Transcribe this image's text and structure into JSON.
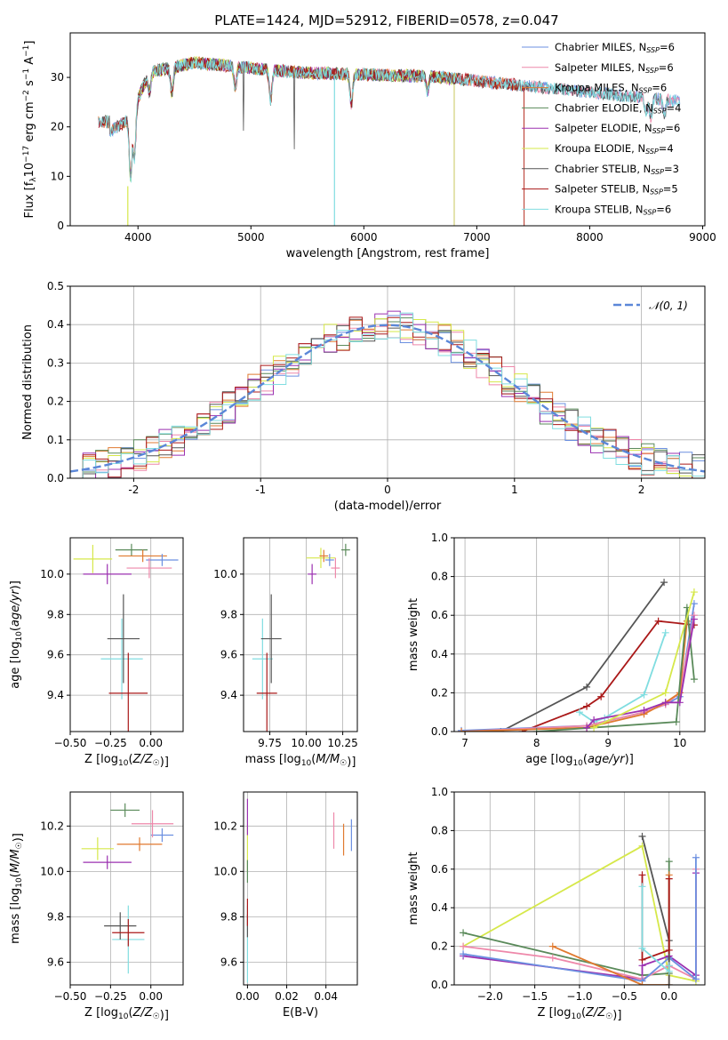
{
  "figure": {
    "title": "PLATE=1424, MJD=52912, FIBERID=0578, z=0.047"
  },
  "colors": {
    "chabrier_miles": "#6b8fe0",
    "salpeter_miles": "#ee88aa",
    "kroupa_miles": "#e07a30",
    "chabrier_elodie": "#5a8a5a",
    "salpeter_elodie": "#9b30b0",
    "kroupa_elodie": "#d6e84a",
    "chabrier_stelib": "#555555",
    "salpeter_stelib": "#aa1818",
    "kroupa_stelib": "#80dde0",
    "normal": "#5b87d8"
  },
  "legend_labels": [
    {
      "base": "Chabrier MILES, N",
      "sub": "SSP",
      "tail": "=6"
    },
    {
      "base": "Salpeter MILES, N",
      "sub": "SSP",
      "tail": "=6"
    },
    {
      "base": "Kroupa MILES, N",
      "sub": "SSP",
      "tail": "=6"
    },
    {
      "base": "Chabrier ELODIE, N",
      "sub": "SSP",
      "tail": "=4"
    },
    {
      "base": "Salpeter ELODIE, N",
      "sub": "SSP",
      "tail": "=6"
    },
    {
      "base": "Kroupa ELODIE, N",
      "sub": "SSP",
      "tail": "=4"
    },
    {
      "base": "Chabrier STELIB, N",
      "sub": "SSP",
      "tail": "=3"
    },
    {
      "base": "Salpeter STELIB, N",
      "sub": "SSP",
      "tail": "=5"
    },
    {
      "base": "Kroupa STELIB, N",
      "sub": "SSP",
      "tail": "=6"
    }
  ],
  "chart_data": [
    {
      "id": "spectrum",
      "type": "line",
      "xlabel": "wavelength [Angstrom, rest frame]",
      "ylabel_parts": [
        "Flux [f",
        "λ",
        "10",
        "−17",
        " erg cm",
        "−2",
        " s",
        "−1",
        " A",
        "−1",
        "]"
      ],
      "xlim": [
        3400,
        9020
      ],
      "ylim": [
        0,
        39
      ],
      "xticks": [
        4000,
        5000,
        6000,
        7000,
        8000,
        9000
      ],
      "yticks": [
        0,
        10,
        20,
        30
      ],
      "grid": false,
      "legend": "upper-right"
    },
    {
      "id": "residuals",
      "type": "line",
      "xlabel": "(data-model)/error",
      "ylabel": "Normed distribution",
      "xlim": [
        -2.5,
        2.5
      ],
      "ylim": [
        0,
        0.5
      ],
      "xticks": [
        -2,
        -1,
        0,
        1,
        2
      ],
      "yticks": [
        0.0,
        0.1,
        0.2,
        0.3,
        0.4,
        0.5
      ],
      "ytick_labels": [
        "0.0",
        "0.1",
        "0.2",
        "0.3",
        "0.4",
        "0.5"
      ],
      "grid": true,
      "bin_width": 0.1,
      "bin_start": -2.5,
      "normal_label": "𝒩(0, 1)",
      "series": [
        {
          "key": "chabrier_miles",
          "seed": 11
        },
        {
          "key": "salpeter_miles",
          "seed": 23
        },
        {
          "key": "kroupa_miles",
          "seed": 37
        },
        {
          "key": "chabrier_elodie",
          "seed": 41
        },
        {
          "key": "salpeter_elodie",
          "seed": 53
        },
        {
          "key": "kroupa_elodie",
          "seed": 67
        },
        {
          "key": "chabrier_stelib",
          "seed": 71
        },
        {
          "key": "salpeter_stelib",
          "seed": 83
        },
        {
          "key": "kroupa_stelib",
          "seed": 97
        }
      ]
    },
    {
      "id": "z_age",
      "type": "scatter",
      "xlabel": "Z [log10(Z/Z☉)]",
      "ylabel": "age  [log10(age/yr)]",
      "xlim": [
        -0.5,
        0.2
      ],
      "ylim": [
        9.22,
        10.18
      ],
      "xticks": [
        -0.5,
        -0.25,
        0.0
      ],
      "xtick_labels": [
        "−0.50",
        "−0.25",
        "0.00"
      ],
      "yticks": [
        9.4,
        9.6,
        9.8,
        10.0
      ],
      "ytick_labels": [
        "9.4",
        "9.6",
        "9.8",
        "10.0"
      ],
      "grid": true,
      "points": [
        {
          "key": "kroupa_elodie",
          "x": -0.36,
          "y": 10.075,
          "xe": 0.12,
          "ye": 0.07
        },
        {
          "key": "salpeter_elodie",
          "x": -0.27,
          "y": 10.0,
          "xe": 0.15,
          "ye": 0.05
        },
        {
          "key": "chabrier_elodie",
          "x": -0.12,
          "y": 10.12,
          "xe": 0.1,
          "ye": 0.03
        },
        {
          "key": "kroupa_miles",
          "x": -0.05,
          "y": 10.09,
          "xe": 0.15,
          "ye": 0.03
        },
        {
          "key": "chabrier_miles",
          "x": 0.07,
          "y": 10.07,
          "xe": 0.1,
          "ye": 0.03
        },
        {
          "key": "salpeter_miles",
          "x": -0.01,
          "y": 10.03,
          "xe": 0.14,
          "ye": 0.05
        },
        {
          "key": "kroupa_stelib",
          "x": -0.18,
          "y": 9.58,
          "xe": 0.13,
          "ye": 0.2
        },
        {
          "key": "chabrier_stelib",
          "x": -0.17,
          "y": 9.68,
          "xe": 0.1,
          "ye": 0.22
        },
        {
          "key": "salpeter_stelib",
          "x": -0.14,
          "y": 9.41,
          "xe": 0.12,
          "ye": 0.2
        }
      ]
    },
    {
      "id": "mass_age",
      "type": "scatter",
      "xlabel": "mass [log10(M/M☉)]",
      "ylabel": "",
      "xlim": [
        9.57,
        10.35
      ],
      "ylim": [
        9.22,
        10.18
      ],
      "xticks": [
        9.75,
        10.0,
        10.25
      ],
      "xtick_labels": [
        "9.75",
        "10.00",
        "10.25"
      ],
      "yticks": [
        9.4,
        9.6,
        9.8,
        10.0
      ],
      "ytick_labels": [
        "9.4",
        "9.6",
        "9.8",
        "10.0"
      ],
      "grid": true,
      "points": [
        {
          "key": "kroupa_elodie",
          "x": 10.1,
          "y": 10.08,
          "xe": 0.1,
          "ye": 0.05
        },
        {
          "key": "salpeter_elodie",
          "x": 10.04,
          "y": 10.0,
          "xe": 0.03,
          "ye": 0.05
        },
        {
          "key": "chabrier_elodie",
          "x": 10.27,
          "y": 10.12,
          "xe": 0.03,
          "ye": 0.03
        },
        {
          "key": "kroupa_miles",
          "x": 10.12,
          "y": 10.09,
          "xe": 0.03,
          "ye": 0.03
        },
        {
          "key": "chabrier_miles",
          "x": 10.16,
          "y": 10.07,
          "xe": 0.03,
          "ye": 0.03
        },
        {
          "key": "salpeter_miles",
          "x": 10.2,
          "y": 10.03,
          "xe": 0.03,
          "ye": 0.05
        },
        {
          "key": "kroupa_stelib",
          "x": 9.7,
          "y": 9.58,
          "xe": 0.07,
          "ye": 0.2
        },
        {
          "key": "chabrier_stelib",
          "x": 9.76,
          "y": 9.68,
          "xe": 0.07,
          "ye": 0.22
        },
        {
          "key": "salpeter_stelib",
          "x": 9.73,
          "y": 9.41,
          "xe": 0.07,
          "ye": 0.2
        }
      ]
    },
    {
      "id": "age_weight",
      "type": "line",
      "xlabel": "age  [log10(age/yr)]",
      "ylabel": "mass weight",
      "xlim": [
        6.85,
        10.35
      ],
      "ylim": [
        0,
        1
      ],
      "xticks": [
        7,
        8,
        9,
        10
      ],
      "yticks": [
        0.0,
        0.2,
        0.4,
        0.6,
        0.8,
        1.0
      ],
      "ytick_labels": [
        "0.0",
        "0.2",
        "0.4",
        "0.6",
        "0.8",
        "1.0"
      ],
      "grid": true,
      "series": [
        {
          "key": "chabrier_stelib",
          "x": [
            7.5,
            8.7,
            9.78
          ],
          "y": [
            0.0,
            0.23,
            0.77
          ]
        },
        {
          "key": "salpeter_stelib",
          "x": [
            7.8,
            8.7,
            8.9,
            9.7,
            10.2
          ],
          "y": [
            0.0,
            0.13,
            0.18,
            0.57,
            0.55
          ]
        },
        {
          "key": "kroupa_stelib",
          "x": [
            8.6,
            8.8,
            8.95,
            9.5,
            9.8
          ],
          "y": [
            0.1,
            0.05,
            0.07,
            0.19,
            0.51
          ]
        },
        {
          "key": "chabrier_miles",
          "x": [
            6.95,
            8.7,
            9.5,
            9.8,
            10.0,
            10.2
          ],
          "y": [
            0.005,
            0.03,
            0.1,
            0.14,
            0.18,
            0.66
          ]
        },
        {
          "key": "salpeter_miles",
          "x": [
            6.95,
            8.7,
            9.5,
            9.8,
            10.0,
            10.2
          ],
          "y": [
            0.0,
            0.03,
            0.1,
            0.14,
            0.2,
            0.6
          ]
        },
        {
          "key": "kroupa_miles",
          "x": [
            6.95,
            8.7,
            9.5,
            9.8,
            10.0,
            10.1
          ],
          "y": [
            0.0,
            0.02,
            0.09,
            0.15,
            0.2,
            0.57
          ]
        },
        {
          "key": "chabrier_elodie",
          "x": [
            8.0,
            9.95,
            10.1,
            10.2
          ],
          "y": [
            0.0,
            0.05,
            0.64,
            0.27
          ]
        },
        {
          "key": "salpeter_elodie",
          "x": [
            8.7,
            8.8,
            9.5,
            9.8,
            10.0,
            10.2
          ],
          "y": [
            0.02,
            0.06,
            0.11,
            0.15,
            0.15,
            0.58
          ]
        },
        {
          "key": "kroupa_elodie",
          "x": [
            8.8,
            9.8,
            10.2
          ],
          "y": [
            0.02,
            0.2,
            0.72
          ]
        }
      ]
    },
    {
      "id": "z_mass",
      "type": "scatter",
      "xlabel": "Z [log10(Z/Z☉)]",
      "ylabel": "mass [log10(M/M☉)]",
      "xlim": [
        -0.5,
        0.2
      ],
      "ylim": [
        9.5,
        10.35
      ],
      "xticks": [
        -0.5,
        -0.25,
        0.0
      ],
      "xtick_labels": [
        "−0.50",
        "−0.25",
        "0.00"
      ],
      "yticks": [
        9.6,
        9.8,
        10.0,
        10.2
      ],
      "ytick_labels": [
        "9.6",
        "9.8",
        "10.0",
        "10.2"
      ],
      "grid": true,
      "points": [
        {
          "key": "kroupa_elodie",
          "x": -0.33,
          "y": 10.1,
          "xe": 0.1,
          "ye": 0.05
        },
        {
          "key": "salpeter_elodie",
          "x": -0.27,
          "y": 10.04,
          "xe": 0.15,
          "ye": 0.03
        },
        {
          "key": "chabrier_elodie",
          "x": -0.16,
          "y": 10.27,
          "xe": 0.09,
          "ye": 0.03
        },
        {
          "key": "kroupa_miles",
          "x": -0.07,
          "y": 10.12,
          "xe": 0.14,
          "ye": 0.03
        },
        {
          "key": "chabrier_miles",
          "x": 0.07,
          "y": 10.16,
          "xe": 0.07,
          "ye": 0.03
        },
        {
          "key": "salpeter_miles",
          "x": 0.01,
          "y": 10.21,
          "xe": 0.13,
          "ye": 0.06
        },
        {
          "key": "kroupa_stelib",
          "x": -0.14,
          "y": 9.7,
          "xe": 0.1,
          "ye": 0.15
        },
        {
          "key": "chabrier_stelib",
          "x": -0.19,
          "y": 9.76,
          "xe": 0.1,
          "ye": 0.06
        },
        {
          "key": "salpeter_stelib",
          "x": -0.14,
          "y": 9.73,
          "xe": 0.1,
          "ye": 0.06
        }
      ]
    },
    {
      "id": "ebv_mass",
      "type": "scatter",
      "xlabel": "E(B-V)",
      "ylabel": "",
      "xlim": [
        -0.002,
        0.056
      ],
      "ylim": [
        9.5,
        10.35
      ],
      "xticks": [
        0.0,
        0.02,
        0.04
      ],
      "xtick_labels": [
        "0.00",
        "0.02",
        "0.04"
      ],
      "yticks": [
        9.6,
        9.8,
        10.0,
        10.2
      ],
      "ytick_labels": [
        "9.6",
        "9.8",
        "10.0",
        "10.2"
      ],
      "grid": true,
      "points": [
        {
          "key": "kroupa_elodie",
          "x": 0.0,
          "y": 10.1,
          "xe": 0.0,
          "ye": 0.1
        },
        {
          "key": "salpeter_elodie",
          "x": 0.0,
          "y": 10.24,
          "xe": 0.0,
          "ye": 0.08
        },
        {
          "key": "chabrier_elodie",
          "x": 0.0,
          "y": 10.0,
          "xe": 0.0,
          "ye": 0.05
        },
        {
          "key": "salpeter_miles",
          "x": 0.044,
          "y": 10.18,
          "xe": 0.0,
          "ye": 0.08
        },
        {
          "key": "kroupa_miles",
          "x": 0.049,
          "y": 10.14,
          "xe": 0.0,
          "ye": 0.07
        },
        {
          "key": "chabrier_miles",
          "x": 0.053,
          "y": 10.16,
          "xe": 0.0,
          "ye": 0.07
        },
        {
          "key": "kroupa_stelib",
          "x": 0.0,
          "y": 9.68,
          "xe": 0.0,
          "ye": 0.17
        },
        {
          "key": "chabrier_stelib",
          "x": 0.0,
          "y": 9.76,
          "xe": 0.0,
          "ye": 0.05
        },
        {
          "key": "salpeter_stelib",
          "x": 0.0,
          "y": 9.82,
          "xe": 0.0,
          "ye": 0.06
        }
      ]
    },
    {
      "id": "z_weight",
      "type": "line",
      "xlabel": "Z [log10(Z/Z☉)]",
      "ylabel": "mass weight",
      "xlim": [
        -2.4,
        0.4
      ],
      "ylim": [
        0,
        1
      ],
      "xticks": [
        -2.0,
        -1.5,
        -1.0,
        -0.5,
        0.0
      ],
      "xtick_labels": [
        "−2.0",
        "−1.5",
        "−1.0",
        "−0.5",
        "0.0"
      ],
      "yticks": [
        0.0,
        0.2,
        0.4,
        0.6,
        0.8,
        1.0
      ],
      "ytick_labels": [
        "0.0",
        "0.2",
        "0.4",
        "0.6",
        "0.8",
        "1.0"
      ],
      "grid": true,
      "series": [
        {
          "key": "kroupa_elodie",
          "x": [
            -2.3,
            -0.3,
            0.0,
            0.3
          ],
          "y": [
            0.2,
            0.72,
            0.05,
            0.02
          ]
        },
        {
          "key": "chabrier_elodie",
          "x": [
            -2.3,
            -0.3,
            0.0,
            0.0
          ],
          "y": [
            0.27,
            0.05,
            0.06,
            0.64
          ]
        },
        {
          "key": "salpeter_elodie",
          "x": [
            -2.3,
            -0.3,
            -0.3,
            0.0,
            0.3,
            0.3
          ],
          "y": [
            0.15,
            0.03,
            0.1,
            0.15,
            0.05,
            0.58
          ]
        },
        {
          "key": "salpeter_miles",
          "x": [
            -2.3,
            -1.3,
            -0.3,
            0.0,
            0.3,
            0.3
          ],
          "y": [
            0.2,
            0.14,
            0.03,
            0.1,
            0.03,
            0.6
          ]
        },
        {
          "key": "chabrier_miles",
          "x": [
            -2.3,
            -0.3,
            0.0,
            0.3,
            0.3
          ],
          "y": [
            0.16,
            0.02,
            0.14,
            0.03,
            0.66
          ]
        },
        {
          "key": "kroupa_miles",
          "x": [
            -1.3,
            -0.3,
            0.0,
            0.0
          ],
          "y": [
            0.2,
            0.0,
            0.0,
            0.57
          ]
        },
        {
          "key": "chabrier_stelib",
          "x": [
            -0.3,
            0.0,
            0.0
          ],
          "y": [
            0.77,
            0.23,
            0.0
          ]
        },
        {
          "key": "salpeter_stelib",
          "x": [
            -0.3,
            -0.3,
            0.0,
            0.0
          ],
          "y": [
            0.57,
            0.13,
            0.18,
            0.55
          ]
        },
        {
          "key": "kroupa_stelib",
          "x": [
            -0.3,
            -0.3,
            0.0,
            0.0
          ],
          "y": [
            0.51,
            0.19,
            0.07,
            0.1
          ]
        }
      ]
    }
  ]
}
